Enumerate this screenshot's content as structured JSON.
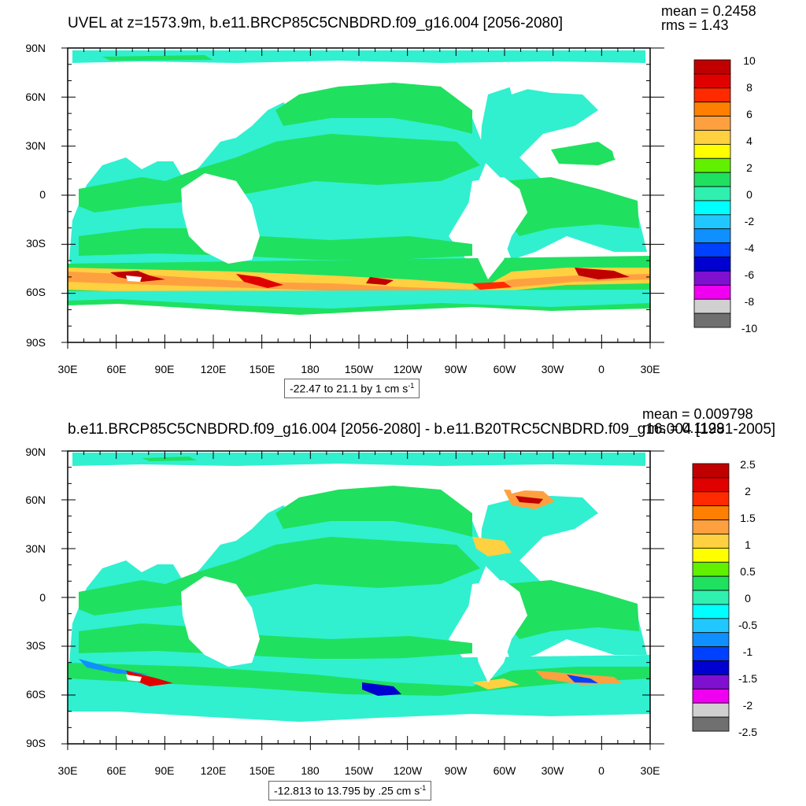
{
  "panels": [
    {
      "title": "UVEL at z=1573.9m, b.e11.BRCP85C5CNBDRD.f09_g16.004 [2056-2080]",
      "mean": "mean = 0.2458",
      "rms": "rms = 1.43",
      "range_text": "-22.47 to 21.1 by 1 cm s",
      "range_unit_exp": "-1",
      "colorbar_labels": [
        "10",
        "8",
        "6",
        "4",
        "2",
        "0",
        "-2",
        "-4",
        "-6",
        "-8",
        "-10"
      ]
    },
    {
      "title": "b.e11.BRCP85C5CNBDRD.f09_g16.004 [2056-2080] - b.e11.B20TRC5CNBDRD.f09_g16.004 [1981-2005]",
      "mean": "mean = 0.009798",
      "rms": "rms = 0.1129",
      "range_text": "-12.813 to 13.795 by .25 cm s",
      "range_unit_exp": "-1",
      "colorbar_labels": [
        "2.5",
        "2",
        "1.5",
        "1",
        "0.5",
        "0",
        "-0.5",
        "-1",
        "-1.5",
        "-2",
        "-2.5"
      ]
    }
  ],
  "lat_labels": [
    "90N",
    "60N",
    "30N",
    "0",
    "30S",
    "60S",
    "90S"
  ],
  "lon_labels": [
    "30E",
    "60E",
    "90E",
    "120E",
    "150E",
    "180",
    "150W",
    "120W",
    "90W",
    "60W",
    "30W",
    "0",
    "30E"
  ],
  "colorbar_colors": [
    "#c00000",
    "#e00000",
    "#ff2a00",
    "#ff8000",
    "#ffa040",
    "#ffd040",
    "#ffff00",
    "#60f000",
    "#20e060",
    "#30f0b0",
    "#00ffff",
    "#20c8ff",
    "#1090ff",
    "#0040ff",
    "#0000d0",
    "#8010d0",
    "#f000f0",
    "#d0d0d0",
    "#707070"
  ],
  "colors": {
    "ocean_cyan": "#30f0d0",
    "ocean_green": "#20e060",
    "land": "#ffffff"
  }
}
